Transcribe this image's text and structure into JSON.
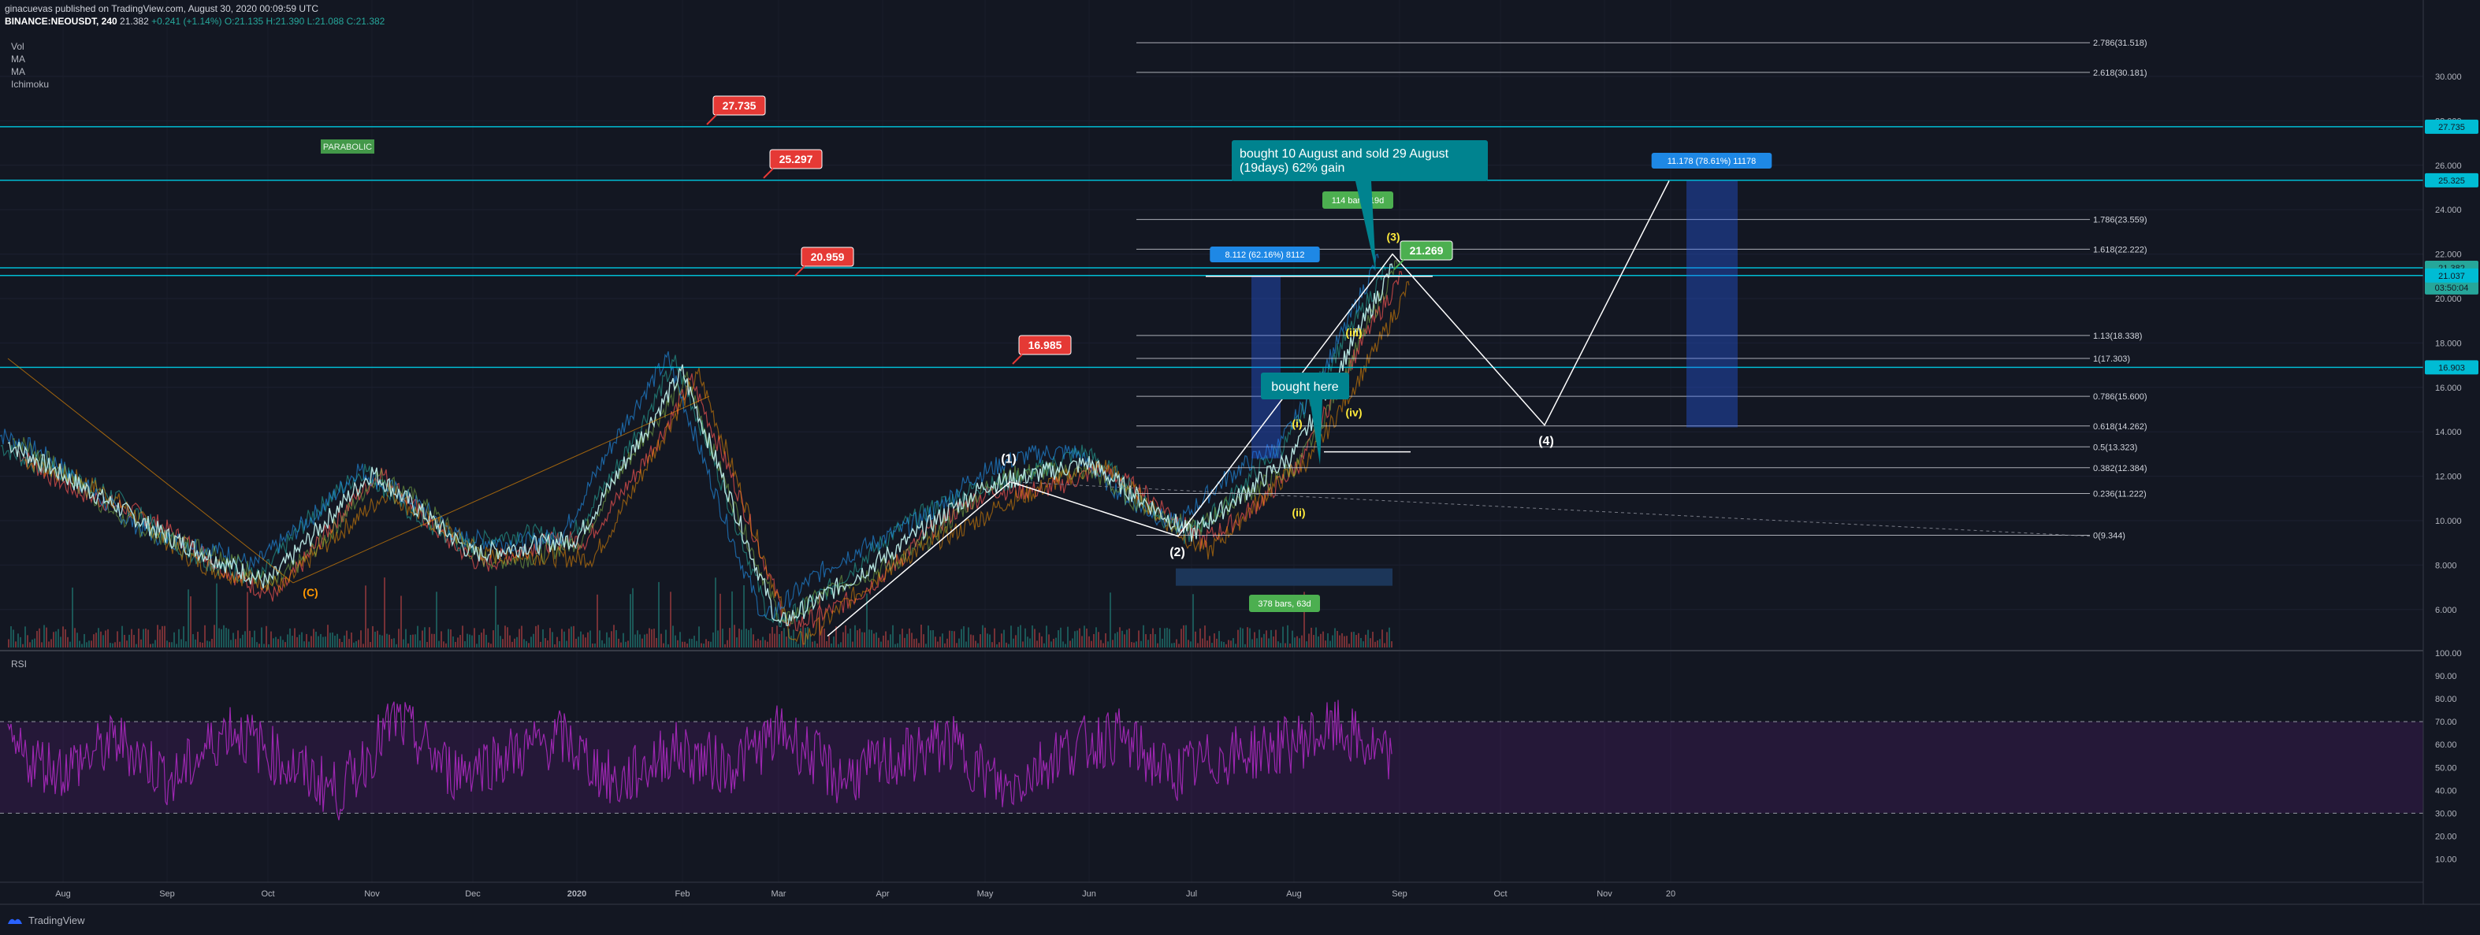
{
  "header": {
    "publisher_line": "ginacuevas published on TradingView.com, August 30, 2020 00:09:59 UTC",
    "symbol": "BINANCE:NEOUSDT, 240",
    "last": "21.382",
    "change": "+0.241 (+1.14%)",
    "ohlc": "O:21.135 H:21.390 L:21.088 C:21.382"
  },
  "indicators": [
    "Vol",
    "MA",
    "MA",
    "Ichimoku"
  ],
  "rsi_label": "RSI",
  "footer": {
    "brand": "TradingView"
  },
  "colors": {
    "bg": "#131722",
    "up": "#26a69a",
    "down": "#ef5350",
    "accent": "#00bcd4",
    "rsi": "#9c27b0"
  },
  "chart_data": [
    {
      "type": "line",
      "title": "BINANCE:NEOUSDT, 240",
      "price_axis_ticks": [
        "30.000",
        "28.000",
        "26.000",
        "24.000",
        "22.000",
        "20.000",
        "18.000",
        "16.000",
        "14.000",
        "12.000",
        "10.000",
        "8.000",
        "6.000"
      ],
      "time_axis_ticks": [
        "Aug",
        "Sep",
        "Oct",
        "Nov",
        "Dec",
        "2020",
        "Feb",
        "Mar",
        "Apr",
        "May",
        "Jun",
        "Jul",
        "Aug",
        "Sep",
        "Oct",
        "Nov",
        "20"
      ],
      "price_series": {
        "name": "NEOUSDT",
        "x": [
          "Aug",
          "Sep",
          "Oct",
          "Nov",
          "Dec",
          "2020",
          "Feb",
          "Mar",
          "Apr",
          "May",
          "Jun",
          "Jul",
          "Aug",
          "Sep"
        ],
        "y": [
          13.5,
          9.3,
          7.2,
          12.2,
          8.5,
          9.2,
          16.7,
          5.3,
          8.3,
          11.6,
          12.6,
          9.4,
          13.0,
          21.4
        ]
      },
      "price_labels": [
        {
          "price": 27.735,
          "text": "27.735"
        },
        {
          "price": 25.297,
          "text": "25.297"
        },
        {
          "price": 20.959,
          "text": "20.959"
        },
        {
          "price": 16.985,
          "text": "16.985"
        },
        {
          "price": 21.269,
          "text": "21.269"
        }
      ],
      "horizontal_lines": [
        27.735,
        25.325,
        21.382,
        21.037,
        16.903
      ],
      "axis_tags": [
        {
          "price": 27.735,
          "text": "27.735",
          "color": "#00bcd4"
        },
        {
          "price": 25.325,
          "text": "25.325",
          "color": "#00bcd4"
        },
        {
          "price": 21.382,
          "text": "21.382",
          "color": "#26a69a"
        },
        {
          "price": 20.5,
          "text": "03:50:04",
          "color": "#26a69a"
        },
        {
          "price": 21.037,
          "text": "21.037",
          "color": "#00bcd4"
        },
        {
          "price": 16.903,
          "text": "16.903",
          "color": "#00bcd4"
        }
      ],
      "fibonacci_levels": [
        {
          "ratio": "2.786",
          "price": 31.518,
          "label": "2.786(31.518)"
        },
        {
          "ratio": "2.618",
          "price": 30.181,
          "label": "2.618(30.181)"
        },
        {
          "ratio": "1.786",
          "price": 23.559,
          "label": "1.786(23.559)"
        },
        {
          "ratio": "1.618",
          "price": 22.222,
          "label": "1.618(22.222)"
        },
        {
          "ratio": "1.13",
          "price": 18.338,
          "label": "1.13(18.338)"
        },
        {
          "ratio": "1",
          "price": 17.303,
          "label": "1(17.303)"
        },
        {
          "ratio": "0.786",
          "price": 15.6,
          "label": "0.786(15.600)"
        },
        {
          "ratio": "0.618",
          "price": 14.262,
          "label": "0.618(14.262)"
        },
        {
          "ratio": "0.5",
          "price": 13.323,
          "label": "0.5(13.323)"
        },
        {
          "ratio": "0.382",
          "price": 12.384,
          "label": "0.382(12.384)"
        },
        {
          "ratio": "0.236",
          "price": 11.222,
          "label": "0.236(11.222)"
        },
        {
          "ratio": "0",
          "price": 9.344,
          "label": "0(9.344)"
        }
      ],
      "measure_boxes": [
        {
          "text": "8.112 (62.16%) 8112"
        },
        {
          "text": "114 bars, 19d"
        },
        {
          "text": "378 bars, 63d"
        },
        {
          "text": "11.178 (78.61%) 11178"
        }
      ],
      "wave_labels": [
        "(1)",
        "(2)",
        "(3)",
        "(4)",
        "(i)",
        "(ii)",
        "(iii)",
        "(iv)",
        "(C)"
      ],
      "annotations": [
        "bought 10 August and sold 29 August\n(19days) 62% gain",
        "bought here",
        "PARABOLIC"
      ]
    },
    {
      "type": "line",
      "title": "RSI",
      "ylim": [
        10,
        100
      ],
      "ticks": [
        "100.00",
        "90.00",
        "80.00",
        "70.00",
        "60.00",
        "50.00",
        "40.00",
        "30.00",
        "20.00",
        "10.00"
      ],
      "bands": [
        30,
        70
      ],
      "series": [
        {
          "name": "RSI",
          "values": [
            57,
            49,
            62,
            44,
            68,
            52,
            39,
            71,
            48,
            55,
            63,
            42,
            58,
            50,
            66,
            45,
            53,
            61,
            40,
            57,
            64,
            47,
            55,
            59,
            67,
            52
          ]
        }
      ]
    }
  ]
}
